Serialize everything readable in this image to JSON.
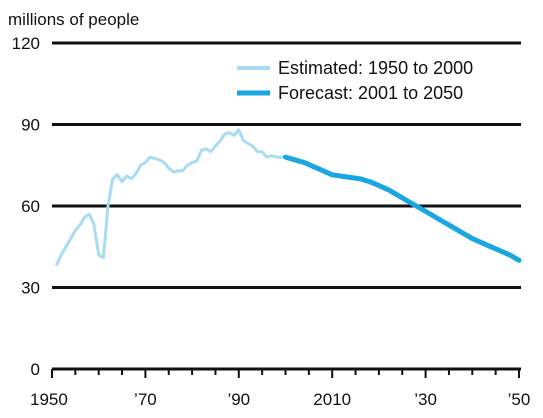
{
  "chart_data": {
    "type": "line",
    "title": "",
    "ylabel": "millions of people",
    "xlabel": "",
    "xlim": [
      1950,
      2050
    ],
    "ylim": [
      0,
      120
    ],
    "yticks": [
      0,
      30,
      60,
      90,
      120
    ],
    "ytick_labels": [
      "0",
      "30",
      "60",
      "90",
      "120"
    ],
    "xticks": [
      1950,
      1970,
      1990,
      2010,
      2030,
      2050
    ],
    "xtick_labels": [
      "1950",
      "’70",
      "’90",
      "2010",
      "’30",
      "’50"
    ],
    "grid": true,
    "legend_position": "top-right",
    "series": [
      {
        "name": "Estimated: 1950 to 2000",
        "color": "#a8dcf2",
        "style": "thin",
        "x": [
          1951,
          1952,
          1953,
          1954,
          1955,
          1956,
          1957,
          1958,
          1959,
          1960,
          1961,
          1962,
          1963,
          1964,
          1965,
          1966,
          1967,
          1968,
          1969,
          1970,
          1971,
          1972,
          1973,
          1974,
          1975,
          1976,
          1977,
          1978,
          1979,
          1980,
          1981,
          1982,
          1983,
          1984,
          1985,
          1986,
          1987,
          1988,
          1989,
          1990,
          1991,
          1992,
          1993,
          1994,
          1995,
          1996,
          1997,
          1998,
          1999,
          2000
        ],
        "values": [
          38.5,
          42,
          45,
          48,
          51,
          53,
          56,
          57,
          53,
          42,
          41,
          60,
          70,
          71.5,
          69,
          71,
          70,
          72,
          75,
          76,
          78,
          77.5,
          77,
          76,
          74,
          72.5,
          73,
          73,
          75,
          76,
          76.5,
          80.5,
          81,
          80,
          82,
          84,
          86.5,
          87,
          86,
          88,
          84,
          83,
          82,
          80,
          80,
          78,
          78.5,
          78,
          78,
          78
        ]
      },
      {
        "name": "Forecast: 2001 to 2050",
        "color": "#1aa6e0",
        "style": "thick",
        "x": [
          2000,
          2002,
          2004,
          2006,
          2008,
          2010,
          2012,
          2014,
          2016,
          2018,
          2020,
          2022,
          2024,
          2026,
          2028,
          2030,
          2032,
          2034,
          2036,
          2038,
          2040,
          2042,
          2044,
          2046,
          2048,
          2050
        ],
        "values": [
          78,
          77,
          76,
          74.5,
          73,
          71.5,
          71,
          70.5,
          70,
          69,
          67.5,
          66,
          64,
          62,
          60,
          58,
          56,
          54,
          52,
          50,
          48,
          46.5,
          45,
          43.5,
          42,
          40
        ]
      }
    ]
  }
}
